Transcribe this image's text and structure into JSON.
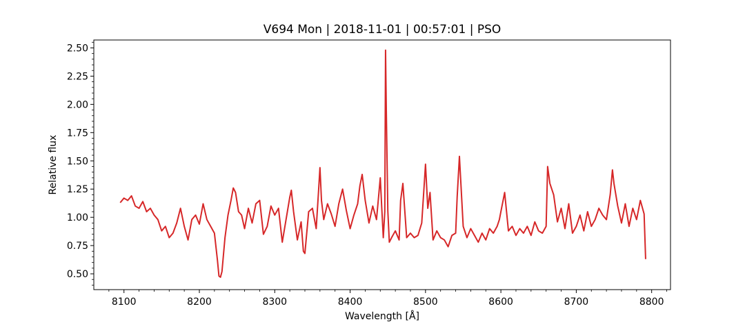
{
  "chart_data": {
    "type": "line",
    "title": "V694 Mon | 2018-11-01 | 00:57:01 | PSO",
    "xlabel": "Wavelength [Å]",
    "ylabel": "Relative flux",
    "xlim": [
      8060,
      8825
    ],
    "ylim": [
      0.36,
      2.57
    ],
    "xticks": [
      8100,
      8200,
      8300,
      8400,
      8500,
      8600,
      8700,
      8800
    ],
    "yticks": [
      0.5,
      0.75,
      1.0,
      1.25,
      1.5,
      1.75,
      2.0,
      2.25,
      2.5
    ],
    "xtick_labels": [
      "8100",
      "8200",
      "8300",
      "8400",
      "8500",
      "8600",
      "8700",
      "8800"
    ],
    "ytick_labels": [
      "0.50",
      "0.75",
      "1.00",
      "1.25",
      "1.50",
      "1.75",
      "2.00",
      "2.25",
      "2.50"
    ],
    "grid": false,
    "line_color": "#d62728",
    "series": [
      {
        "x": [
          8095,
          8100,
          8105,
          8110,
          8115,
          8120,
          8125,
          8130,
          8135,
          8140,
          8145,
          8150,
          8155,
          8160,
          8165,
          8170,
          8175,
          8180,
          8185,
          8190,
          8195,
          8200,
          8205,
          8210,
          8215,
          8220,
          8224,
          8226,
          8228,
          8230,
          8234,
          8238,
          8242,
          8245,
          8248,
          8252,
          8256,
          8260,
          8265,
          8270,
          8275,
          8280,
          8285,
          8290,
          8295,
          8300,
          8305,
          8310,
          8315,
          8320,
          8322,
          8325,
          8330,
          8335,
          8338,
          8340,
          8345,
          8350,
          8355,
          8358,
          8360,
          8362,
          8365,
          8370,
          8375,
          8380,
          8385,
          8390,
          8395,
          8400,
          8405,
          8410,
          8413,
          8416,
          8420,
          8425,
          8430,
          8435,
          8438,
          8440,
          8442,
          8444,
          8446,
          8447,
          8448,
          8450,
          8452,
          8455,
          8460,
          8465,
          8467,
          8470,
          8475,
          8480,
          8485,
          8490,
          8495,
          8498,
          8500,
          8503,
          8506,
          8510,
          8515,
          8520,
          8525,
          8530,
          8535,
          8540,
          8542,
          8545,
          8550,
          8555,
          8560,
          8565,
          8570,
          8575,
          8580,
          8585,
          8590,
          8595,
          8598,
          8600,
          8605,
          8610,
          8615,
          8620,
          8625,
          8630,
          8635,
          8640,
          8645,
          8650,
          8655,
          8660,
          8662,
          8665,
          8670,
          8675,
          8680,
          8685,
          8690,
          8695,
          8700,
          8705,
          8710,
          8715,
          8720,
          8725,
          8730,
          8735,
          8740,
          8745,
          8748,
          8750,
          8755,
          8760,
          8765,
          8770,
          8775,
          8780,
          8785,
          8790,
          8792
        ],
        "y": [
          1.13,
          1.17,
          1.15,
          1.19,
          1.1,
          1.08,
          1.14,
          1.05,
          1.08,
          1.02,
          0.98,
          0.88,
          0.92,
          0.82,
          0.86,
          0.95,
          1.08,
          0.92,
          0.8,
          0.98,
          1.02,
          0.94,
          1.12,
          0.98,
          0.92,
          0.86,
          0.62,
          0.48,
          0.47,
          0.52,
          0.82,
          1.02,
          1.15,
          1.26,
          1.22,
          1.05,
          1.02,
          0.9,
          1.08,
          0.95,
          1.12,
          1.15,
          0.85,
          0.92,
          1.1,
          1.02,
          1.08,
          0.78,
          0.98,
          1.18,
          1.24,
          1.05,
          0.8,
          0.96,
          0.7,
          0.68,
          1.05,
          1.08,
          0.9,
          1.22,
          1.44,
          1.15,
          0.98,
          1.12,
          1.03,
          0.92,
          1.12,
          1.25,
          1.06,
          0.9,
          1.02,
          1.12,
          1.28,
          1.38,
          1.15,
          0.95,
          1.1,
          0.98,
          1.2,
          1.35,
          1.08,
          0.82,
          1.05,
          2.48,
          1.95,
          1.06,
          0.78,
          0.82,
          0.88,
          0.8,
          1.15,
          1.3,
          0.82,
          0.86,
          0.82,
          0.84,
          0.95,
          1.26,
          1.47,
          1.08,
          1.22,
          0.8,
          0.88,
          0.82,
          0.8,
          0.74,
          0.84,
          0.86,
          1.18,
          1.54,
          0.92,
          0.82,
          0.9,
          0.84,
          0.78,
          0.86,
          0.8,
          0.9,
          0.86,
          0.92,
          0.98,
          1.05,
          1.22,
          0.88,
          0.92,
          0.84,
          0.9,
          0.86,
          0.92,
          0.84,
          0.96,
          0.88,
          0.86,
          0.92,
          1.45,
          1.3,
          1.2,
          0.96,
          1.08,
          0.9,
          1.12,
          0.86,
          0.92,
          1.02,
          0.88,
          1.05,
          0.92,
          0.98,
          1.08,
          1.02,
          0.98,
          1.2,
          1.42,
          1.3,
          1.1,
          0.95,
          1.12,
          0.92,
          1.08,
          0.98,
          1.15,
          1.03,
          0.63
        ]
      }
    ]
  }
}
